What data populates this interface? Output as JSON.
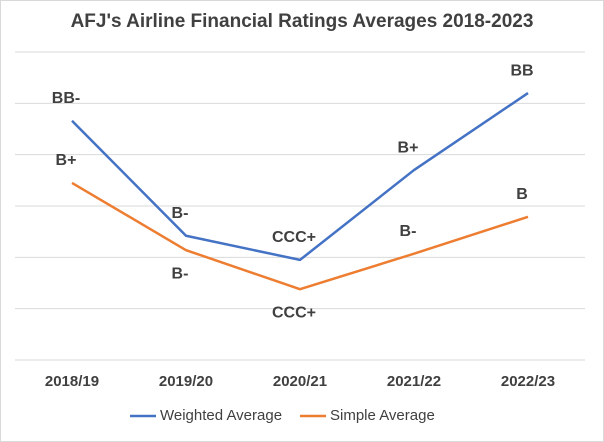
{
  "chart_data": {
    "type": "line",
    "title": "AFJ's Airline Financial Ratings Averages 2018-2023",
    "categories": [
      "2018/19",
      "2019/20",
      "2020/21",
      "2021/22",
      "2022/23"
    ],
    "series": [
      {
        "name": "Weighted Average",
        "color": "#4472c4",
        "values": [
          4.66,
          2.42,
          1.95,
          3.7,
          5.2
        ],
        "value_labels": [
          "BB-",
          "B-",
          "CCC+",
          "B+",
          "BB"
        ]
      },
      {
        "name": "Simple Average",
        "color": "#ed7d31",
        "values": [
          3.45,
          2.14,
          1.38,
          2.07,
          2.79
        ],
        "value_labels": [
          "B+",
          "B-",
          "CCC+",
          "B-",
          "B"
        ]
      }
    ],
    "ylim": [
      0,
      6
    ],
    "yticks": [
      0,
      1,
      2,
      3,
      4,
      5,
      6
    ],
    "grid": true,
    "legend": "bottom"
  }
}
